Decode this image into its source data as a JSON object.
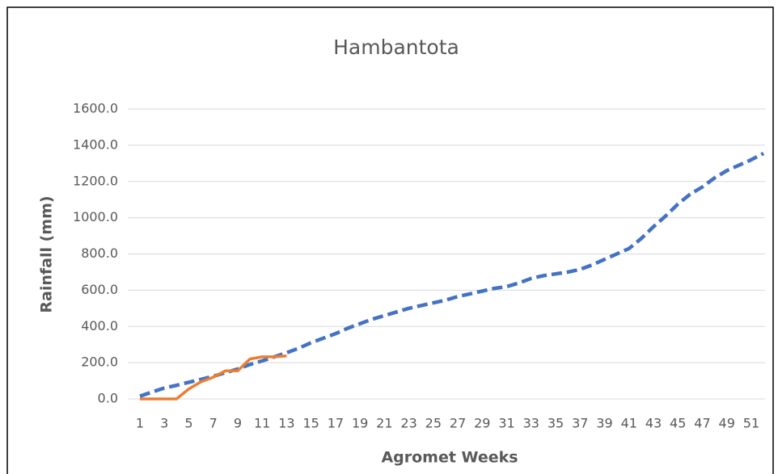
{
  "chart_data": {
    "type": "line",
    "title": "Hambantota",
    "xlabel": "Agromet Weeks",
    "ylabel": "Rainfall (mm)",
    "categories": [
      1,
      null,
      3,
      null,
      5,
      null,
      7,
      null,
      9,
      null,
      11,
      null,
      13,
      null,
      15,
      null,
      17,
      null,
      19,
      null,
      21,
      null,
      23,
      null,
      25,
      null,
      27,
      null,
      29,
      null,
      31,
      null,
      33,
      null,
      35,
      null,
      37,
      null,
      39,
      null,
      41,
      null,
      43,
      null,
      45,
      null,
      47,
      null,
      49,
      null,
      51,
      null
    ],
    "series": [
      {
        "color": "#4472c4",
        "dashed": true,
        "values": [
          15,
          38,
          60,
          75,
          92,
          108,
          125,
          145,
          165,
          190,
          210,
          232,
          255,
          280,
          310,
          335,
          360,
          390,
          415,
          440,
          460,
          480,
          500,
          515,
          530,
          545,
          565,
          580,
          595,
          610,
          620,
          640,
          665,
          680,
          690,
          700,
          715,
          740,
          770,
          800,
          830,
          885,
          950,
          1010,
          1075,
          1130,
          1170,
          1220,
          1260,
          1290,
          1320,
          1355
        ]
      },
      {
        "color": "#ed7d31",
        "dashed": false,
        "values": [
          0,
          0,
          0,
          0,
          55,
          95,
          120,
          155,
          155,
          220,
          232,
          232,
          237,
          null,
          null,
          null,
          null,
          null,
          null,
          null,
          null,
          null,
          null,
          null,
          null,
          null,
          null,
          null,
          null,
          null,
          null,
          null,
          null,
          null,
          null,
          null,
          null,
          null,
          null,
          null,
          null,
          null,
          null,
          null,
          null,
          null,
          null,
          null,
          null,
          null,
          null,
          null
        ]
      }
    ],
    "ylim": [
      0,
      1600
    ],
    "yticks": [
      {
        "value": 0,
        "label": "0.0"
      },
      {
        "value": 200,
        "label": "200.0"
      },
      {
        "value": 400,
        "label": "400.0"
      },
      {
        "value": 600,
        "label": "600.0"
      },
      {
        "value": 800,
        "label": "800.0"
      },
      {
        "value": 1000,
        "label": "1000.0"
      },
      {
        "value": 1200,
        "label": "1200.0"
      },
      {
        "value": 1400,
        "label": "1400.0"
      },
      {
        "value": 1600,
        "label": "1600.0"
      }
    ],
    "grid": true
  }
}
